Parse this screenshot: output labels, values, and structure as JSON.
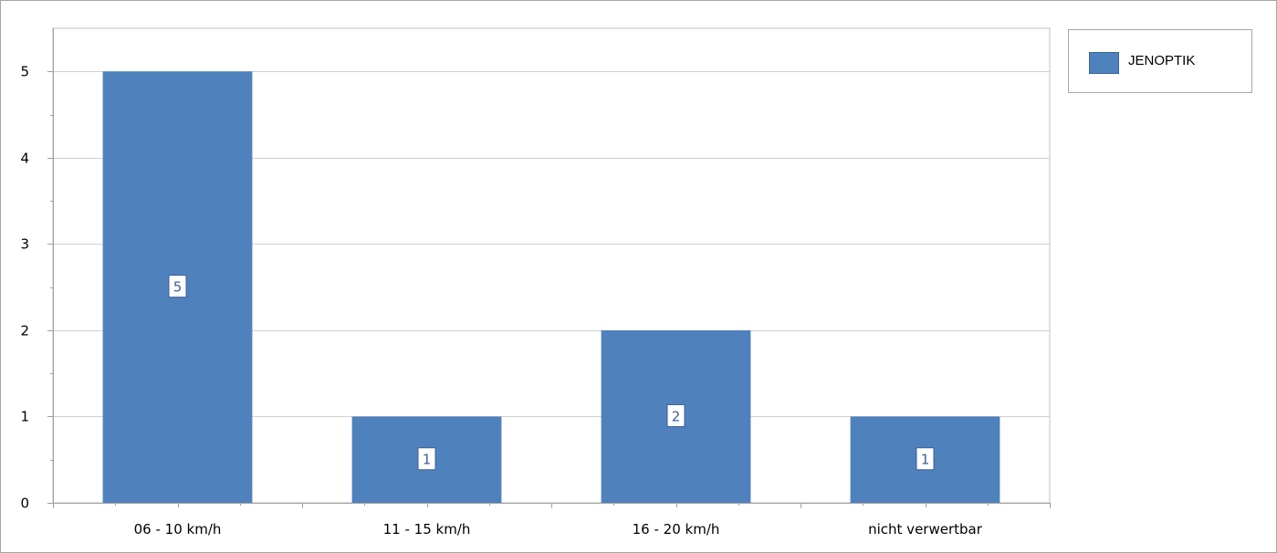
{
  "chart_data": {
    "type": "bar",
    "categories": [
      "06 - 10 km/h",
      "11 - 15 km/h",
      "16 - 20 km/h",
      "nicht verwertbar"
    ],
    "series": [
      {
        "name": "JENOPTIK",
        "values": [
          5,
          1,
          2,
          1
        ]
      }
    ],
    "data_labels": [
      "5",
      "1",
      "2",
      "1"
    ],
    "yticks": [
      "0",
      "1",
      "2",
      "3",
      "4",
      "5"
    ],
    "ylim": [
      0,
      5.5
    ],
    "grid": true,
    "legend": "top-right",
    "bar_color": "#4f81bd"
  }
}
